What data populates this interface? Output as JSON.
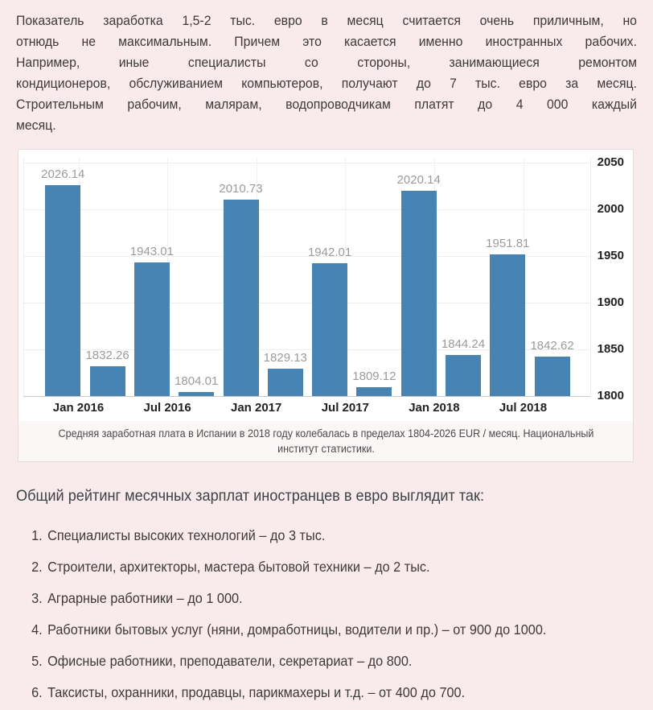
{
  "article": {
    "intro_lines": [
      "Показатель заработка 1,5-2 тыс. евро в месяц считается очень приличным, но",
      "отнюдь не максимальным. Причем это касается именно иностранных рабочих.",
      "Например, иные специалисты со стороны, занимающиеся ремонтом",
      "кондиционеров, обслуживанием компьютеров, получают до 7 тыс. евро за месяц.",
      "Строительным рабочим, малярам, водопроводчикам платят до 4 000 каждый",
      "месяц."
    ],
    "rating_heading": "Общий рейтинг месячных зарплат иностранцев в евро выглядит так:",
    "rating_list": [
      "Специалисты высоких технологий – до 3 тыс.",
      "Строители, архитекторы, мастера бытовой техники – до 2 тыс.",
      "Аграрные работники – до 1 000.",
      "Работники бытовых услуг (няни, домработницы, водители и пр.) – от 900 до 1000.",
      "Офисные работники, преподаватели, секретариат – до 800.",
      "Таксисты, охранники, продавцы, парикмахеры и т.д. – от 400 до 700."
    ]
  },
  "figure": {
    "caption_lines": [
      "Средняя заработная плата в Испании в 2018 году колебалась в пределах 1804-2026 EUR / месяц. Национальный",
      "институт статистики."
    ]
  },
  "chart_data": {
    "type": "bar",
    "values": [
      2026.14,
      1832.26,
      1943.01,
      1804.01,
      2010.73,
      1829.13,
      1942.01,
      1809.12,
      2020.14,
      1844.24,
      1951.81,
      1842.62
    ],
    "value_labels": [
      "2026.14",
      "1832.26",
      "1943.01",
      "1804.01",
      "2010.73",
      "1829.13",
      "1942.01",
      "1809.12",
      "2020.14",
      "1844.24",
      "1951.81",
      "1842.62"
    ],
    "x_tick_labels": [
      "Jan 2016",
      "Jul 2016",
      "Jan 2017",
      "Jul 2017",
      "Jan 2018",
      "Jul 2018"
    ],
    "bars_per_tick": 2,
    "y_ticks": [
      2050,
      2000,
      1950,
      1900,
      1850,
      1800
    ],
    "ylim": [
      1800,
      2050
    ],
    "grid": true,
    "legend": false,
    "bar_color": "#4784b3",
    "value_label_color": "#9b9b9b",
    "axis_tick_color": "#222222",
    "page_background": "#f9ebeb"
  }
}
